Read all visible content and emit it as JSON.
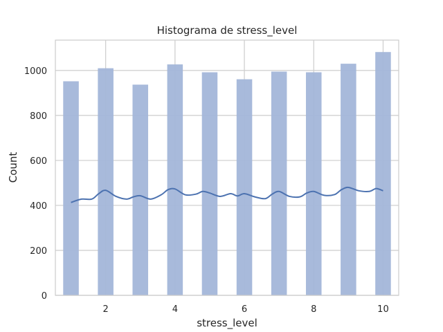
{
  "chart_data": {
    "type": "bar",
    "title": "Histograma de stress_level",
    "xlabel": "stress_level",
    "ylabel": "Count",
    "xlim": [
      0.55,
      10.45
    ],
    "ylim": [
      0,
      1135
    ],
    "xticks": [
      2,
      4,
      6,
      8,
      10
    ],
    "yticks": [
      0,
      200,
      400,
      600,
      800,
      1000
    ],
    "grid": true,
    "bin_width": 0.45,
    "bins": [
      {
        "x": 1,
        "count": 952
      },
      {
        "x": 2,
        "count": 1010
      },
      {
        "x": 3,
        "count": 937
      },
      {
        "x": 4,
        "count": 1027
      },
      {
        "x": 5,
        "count": 992
      },
      {
        "x": 6,
        "count": 961
      },
      {
        "x": 7,
        "count": 995
      },
      {
        "x": 8,
        "count": 992
      },
      {
        "x": 9,
        "count": 1030
      },
      {
        "x": 10,
        "count": 1082
      }
    ],
    "kde": {
      "x": [
        1.0,
        1.3,
        1.6,
        1.8,
        2.0,
        2.3,
        2.6,
        2.8,
        3.0,
        3.3,
        3.6,
        3.8,
        4.0,
        4.3,
        4.6,
        4.8,
        5.0,
        5.3,
        5.6,
        5.8,
        6.0,
        6.3,
        6.6,
        6.8,
        7.0,
        7.3,
        7.6,
        7.8,
        8.0,
        8.3,
        8.6,
        8.8,
        9.0,
        9.3,
        9.6,
        9.8,
        10.0
      ],
      "y": [
        413,
        428,
        428,
        452,
        467,
        440,
        428,
        438,
        443,
        428,
        447,
        470,
        473,
        447,
        450,
        462,
        455,
        440,
        452,
        442,
        452,
        438,
        430,
        450,
        462,
        440,
        438,
        455,
        462,
        445,
        448,
        470,
        480,
        465,
        462,
        475,
        465
      ]
    },
    "bar_color": "#a3b6d9",
    "line_color": "#4c72b0",
    "grid_color": "#cccccc",
    "frame_color": "#cccccc"
  }
}
